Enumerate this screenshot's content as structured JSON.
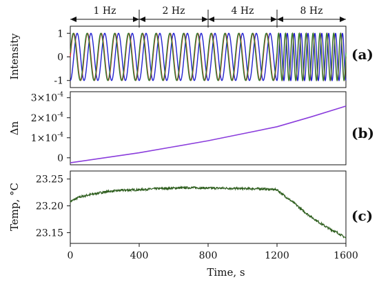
{
  "colors": {
    "wave_blue": "#2020d0",
    "wave_red": "#d02020",
    "wave_green": "#308030",
    "dn_line": "#8a3cdc",
    "temp_line": "#2e5e1e",
    "axis": "#111111"
  },
  "chart_data": [
    {
      "type": "line",
      "panel_label": "(a)",
      "ylabel": "Intensity",
      "xlim": [
        0,
        1600
      ],
      "ylim": [
        -1.3,
        1.3
      ],
      "yticks": [
        {
          "value": 1,
          "label": "1"
        },
        {
          "value": 0,
          "label": "0"
        },
        {
          "value": -1,
          "label": "-1"
        }
      ],
      "frequency_bands": [
        {
          "label": "1 Hz",
          "x_start": 0,
          "x_end": 400,
          "cycles": 5
        },
        {
          "label": "2 Hz",
          "x_start": 400,
          "x_end": 800,
          "cycles": 5
        },
        {
          "label": "4 Hz",
          "x_start": 800,
          "x_end": 1200,
          "cycles": 5
        },
        {
          "label": "8 Hz",
          "x_start": 1200,
          "x_end": 1600,
          "cycles": 10
        }
      ],
      "series": [
        {
          "color": "#2020d0",
          "phase_deg": 0
        },
        {
          "color": "#d02020",
          "phase_deg": 90
        },
        {
          "color": "#308030",
          "phase_deg": 100
        }
      ]
    },
    {
      "type": "line",
      "panel_label": "(b)",
      "ylabel": "Δn",
      "xlim": [
        0,
        1600
      ],
      "ylim": [
        -3.5e-05,
        0.00033
      ],
      "yticks": [
        {
          "value": 0,
          "label": "0"
        },
        {
          "value": 0.0001,
          "mantissa": "1",
          "exponent": "-4"
        },
        {
          "value": 0.0002,
          "mantissa": "2",
          "exponent": "-4"
        },
        {
          "value": 0.0003,
          "mantissa": "3",
          "exponent": "-4"
        }
      ],
      "series": [
        {
          "x": [
            0,
            200,
            400,
            600,
            800,
            1000,
            1200,
            1400,
            1600
          ],
          "y": [
            -2.5e-05,
            0.0,
            2.5e-05,
            5.5e-05,
            8.5e-05,
            0.00012,
            0.000155,
            0.000205,
            0.000258
          ]
        }
      ]
    },
    {
      "type": "line",
      "panel_label": "(c)",
      "ylabel": "Temp, °C",
      "xlabel": "Time, s",
      "xlim": [
        0,
        1600
      ],
      "ylim": [
        23.13,
        23.265
      ],
      "xticks": [
        0,
        400,
        800,
        1200,
        1600
      ],
      "yticks": [
        {
          "value": 23.25,
          "label": "23.25"
        },
        {
          "value": 23.2,
          "label": "23.20"
        },
        {
          "value": 23.15,
          "label": "23.15"
        }
      ],
      "series": [
        {
          "x": [
            0,
            50,
            100,
            200,
            300,
            400,
            500,
            600,
            700,
            800,
            900,
            1000,
            1100,
            1200,
            1250,
            1300,
            1350,
            1400,
            1450,
            1500,
            1550,
            1600
          ],
          "y": [
            23.208,
            23.216,
            23.22,
            23.226,
            23.229,
            23.23,
            23.232,
            23.233,
            23.234,
            23.233,
            23.233,
            23.232,
            23.232,
            23.23,
            23.217,
            23.205,
            23.191,
            23.179,
            23.168,
            23.158,
            23.15,
            23.14
          ]
        }
      ]
    }
  ]
}
